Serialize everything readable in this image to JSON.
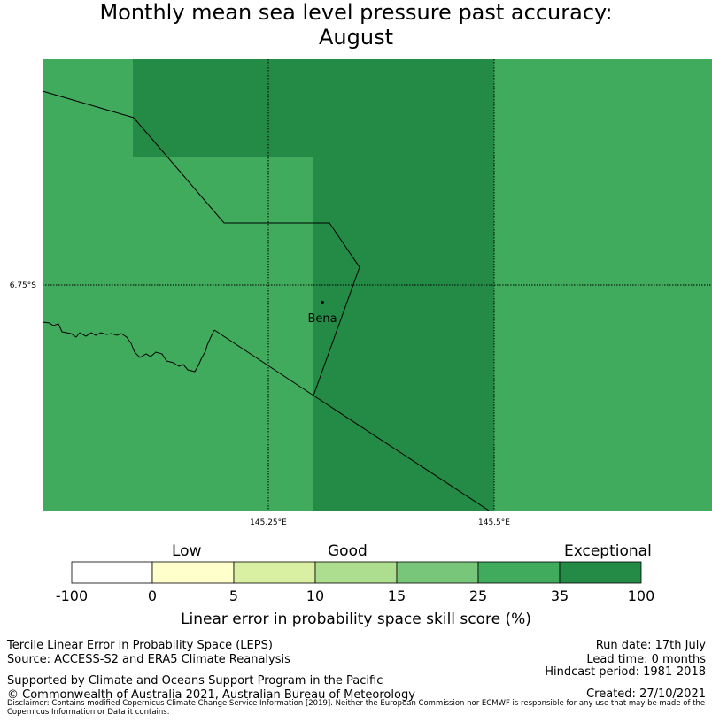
{
  "title_line1": "Monthly mean sea level pressure past accuracy:",
  "title_line2": "August",
  "map": {
    "lat_label": "6.75°S",
    "lon_labels": [
      "145.25°E",
      "145.5°E"
    ],
    "location": "Bena",
    "colors": {
      "good_25_35": "#41ab5d",
      "exceptional_35_100": "#238b45"
    }
  },
  "colorbar": {
    "categories": [
      "Low",
      "Good",
      "Exceptional"
    ],
    "ticks": [
      "-100",
      "0",
      "5",
      "10",
      "15",
      "25",
      "35",
      "100"
    ],
    "colors": [
      "#ffffff",
      "#ffffcc",
      "#d9f0a3",
      "#addd8e",
      "#78c679",
      "#41ab5d",
      "#238b45"
    ],
    "label": "Linear error in probability space skill score (%)"
  },
  "footer": {
    "left1": "Tercile Linear Error in Probability Space (LEPS)",
    "left2": "Source: ACCESS-S2 and ERA5 Climate Reanalysis",
    "left3": "Supported by Climate and Oceans Support Program in the Pacific",
    "left4": "© Commonwealth of Australia 2021, Australian Bureau of Meteorology",
    "right1": "Run date: 17th July",
    "right2": "Lead time: 0 months",
    "right3": "Hindcast period: 1981-2018",
    "right4": "Created: 27/10/2021",
    "disclaimer": "Disclaimer: Contains modified Copernicus Climate Change Service Information [2019]. Neither the European Commission nor ECMWF is responsible for any use that may be made of the Copernicus Information or Data it contains."
  }
}
